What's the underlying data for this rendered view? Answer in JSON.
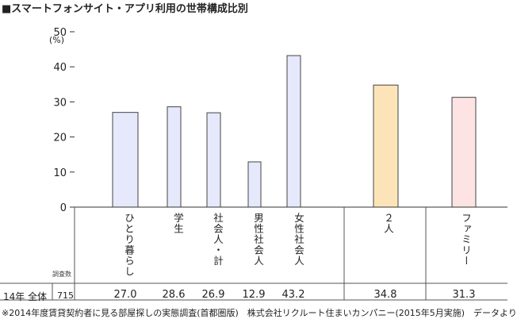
{
  "title": "■スマートフォンサイト・アプリ利用の世帯構成比別",
  "chart_data": {
    "type": "bar",
    "title": "■スマートフォンサイト・アプリ利用の世帯構成比別",
    "ylabel": "(%)",
    "ylim": [
      0,
      50
    ],
    "yticks": [
      "50",
      "40",
      "30",
      "20",
      "10",
      "0"
    ],
    "grid": false,
    "categories": [
      "ひとり暮らし",
      "学生",
      "社会人・計",
      "男性社会人",
      "女性社会人",
      "２人",
      "ファミリー"
    ],
    "values": [
      27.0,
      28.6,
      26.9,
      12.9,
      43.2,
      34.8,
      31.3
    ],
    "value_labels": [
      "27.0",
      "28.6",
      "26.9",
      "12.9",
      "43.2",
      "34.8",
      "31.3"
    ],
    "colors": [
      "#e6e8fb",
      "#e6e8fb",
      "#e6e8fb",
      "#e6e8fb",
      "#e6e8fb",
      "#fde4b8",
      "#fde3e3"
    ],
    "table": {
      "sample_header": "調査数",
      "row_label": "14年 全体",
      "sample_n": "715"
    }
  },
  "footnote": "※2014年度賃貸契約者に見る部屋探しの実態調査(首都圏版)　株式会社リクルート住まいカンパニー(2015年5月実施)　データより"
}
